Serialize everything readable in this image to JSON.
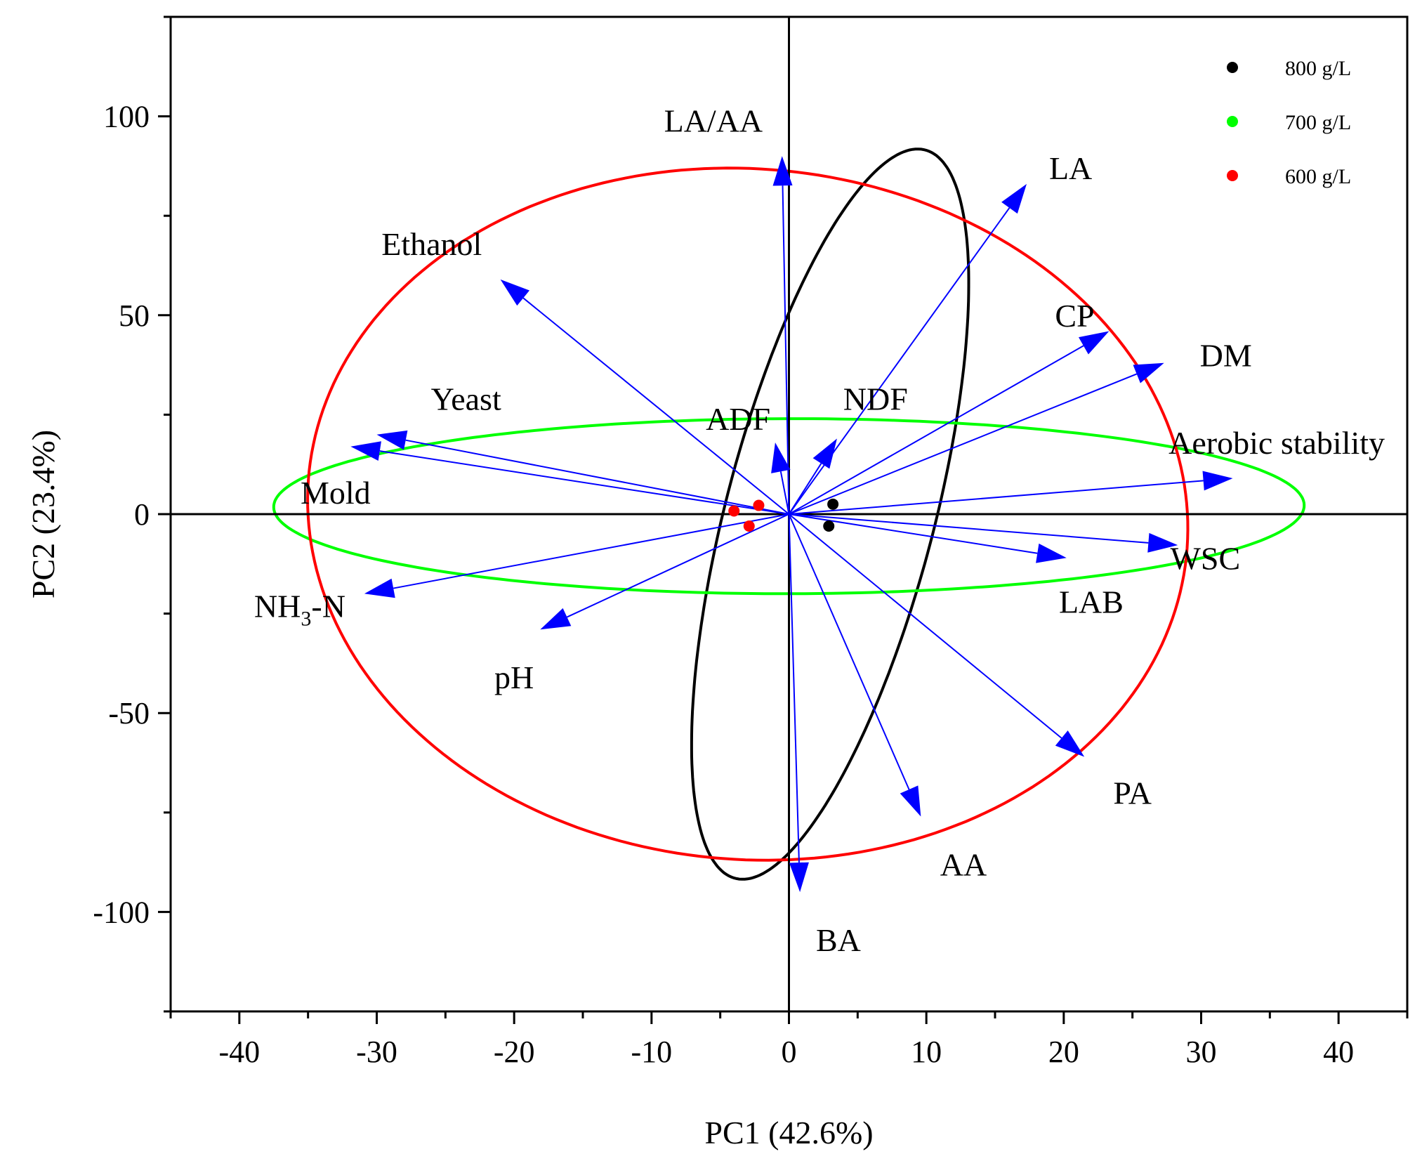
{
  "chart_data": {
    "type": "scatter",
    "subtype": "pca-biplot",
    "xlabel": "PC1 (42.6%)",
    "ylabel": "PC2 (23.4%)",
    "xlim": [
      -45,
      45
    ],
    "ylim": [
      -125,
      125
    ],
    "xticks": [
      -40,
      -30,
      -20,
      -10,
      0,
      10,
      20,
      30,
      40
    ],
    "yticks": [
      -100,
      -50,
      0,
      50,
      100
    ],
    "legend_position": "top-right",
    "series": [
      {
        "name": "800 g/L",
        "color": "#000000",
        "points": [
          [
            3.2,
            2.5
          ],
          [
            2.9,
            -3.0
          ]
        ]
      },
      {
        "name": "700 g/L",
        "color": "#00ff00",
        "points": []
      },
      {
        "name": "600 g/L",
        "color": "#ff0000",
        "points": [
          [
            -2.2,
            2.2
          ],
          [
            -4.0,
            0.8
          ],
          [
            -2.9,
            -3.0
          ]
        ]
      }
    ],
    "ellipses": [
      {
        "group": "800 g/L",
        "color": "#000000",
        "center": [
          3.0,
          0.0
        ],
        "semi_major": 92,
        "semi_minor": 7.8,
        "angle_deg": 86
      },
      {
        "group": "700 g/L",
        "color": "#00ff00",
        "center": [
          0.0,
          2.0
        ],
        "semi_major": 37.5,
        "semi_minor": 22,
        "angle_deg": 0.5
      },
      {
        "group": "600 g/L",
        "color": "#ff0000",
        "center": [
          -3.0,
          0.0
        ],
        "semi_major": 87,
        "semi_minor": 32,
        "angle_deg": 91
      }
    ],
    "loadings": [
      {
        "label": "LA/AA",
        "x": -0.5,
        "y": 90,
        "label_x": -5.5,
        "label_y": 99
      },
      {
        "label": "LA",
        "x": 17.3,
        "y": 83,
        "label_x": 20.5,
        "label_y": 87
      },
      {
        "label": "Ethanol",
        "x": -21.0,
        "y": 59,
        "label_x": -26,
        "label_y": 68
      },
      {
        "label": "CP",
        "x": 23.3,
        "y": 46,
        "label_x": 20.8,
        "label_y": 50
      },
      {
        "label": "DM",
        "x": 27.3,
        "y": 38,
        "label_x": 31.8,
        "label_y": 40
      },
      {
        "label": "Yeast",
        "x": -30.0,
        "y": 20,
        "label_x": -23.5,
        "label_y": 29
      },
      {
        "label": "ADF",
        "x": -1.0,
        "y": 18,
        "label_x": -3.7,
        "label_y": 24
      },
      {
        "label": "NDF",
        "x": 3.5,
        "y": 19,
        "label_x": 6.3,
        "label_y": 29
      },
      {
        "label": "Aerobic stability",
        "x": 32.3,
        "y": 9,
        "label_x": 35.5,
        "label_y": 18
      },
      {
        "label": "Mold",
        "x": -31.9,
        "y": 17,
        "label_x": -33.0,
        "label_y": 5.5
      },
      {
        "label": "WSC",
        "x": 28.3,
        "y": -7.8,
        "label_x": 30.3,
        "label_y": -11
      },
      {
        "label": "LAB",
        "x": 20.2,
        "y": -11,
        "label_x": 22,
        "label_y": -22
      },
      {
        "label": "NH3-N",
        "x": -30.9,
        "y": -20,
        "label_x": -35.6,
        "label_y": -23
      },
      {
        "label": "pH",
        "x": -18.1,
        "y": -29,
        "label_x": -20.0,
        "label_y": -41
      },
      {
        "label": "PA",
        "x": 21.5,
        "y": -61,
        "label_x": 25.0,
        "label_y": -70
      },
      {
        "label": "AA",
        "x": 9.6,
        "y": -76,
        "label_x": 12.7,
        "label_y": -88
      },
      {
        "label": "BA",
        "x": 0.8,
        "y": -95,
        "label_x": 3.6,
        "label_y": -107
      }
    ]
  }
}
